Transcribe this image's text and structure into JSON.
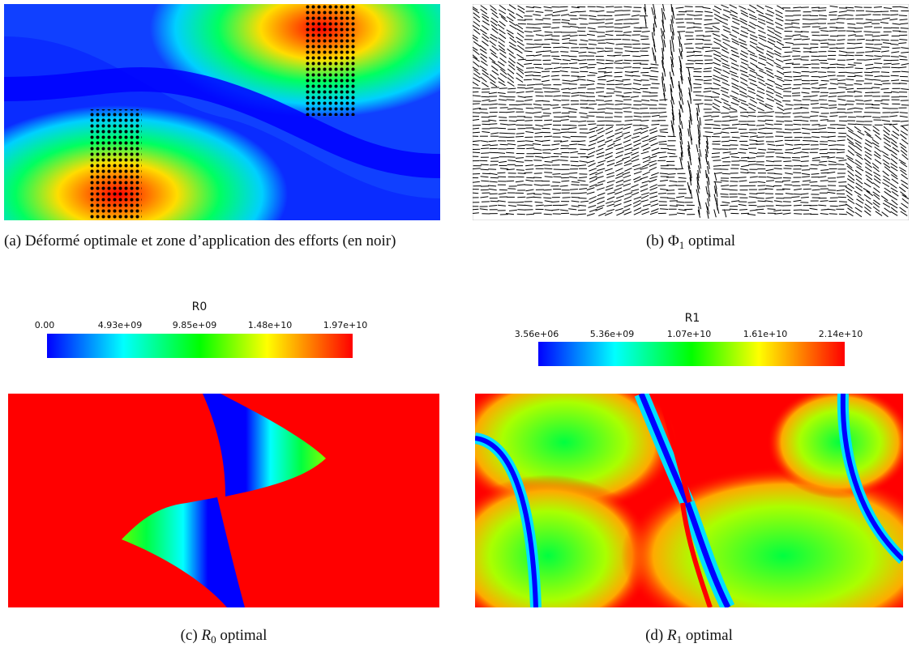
{
  "figure": {
    "panels": [
      {
        "id": "a",
        "caption_label": "(a)",
        "caption_text": "Déformé optimale et zone d’application des efforts (en noir)"
      },
      {
        "id": "b",
        "caption_label": "(b)",
        "caption_symbol": "Φ",
        "caption_sub": "1",
        "caption_rest": "optimal"
      },
      {
        "id": "c",
        "caption_label": "(c)",
        "caption_symbol": "R",
        "caption_sub": "0",
        "caption_rest": "optimal",
        "colorbar": {
          "title": "R0",
          "ticks": [
            "0.00",
            "4.93e+09",
            "9.85e+09",
            "1.48e+10",
            "1.97e+10"
          ]
        }
      },
      {
        "id": "d",
        "caption_label": "(d)",
        "caption_symbol": "R",
        "caption_sub": "1",
        "caption_rest": "optimal",
        "colorbar": {
          "title": "R1",
          "ticks": [
            "3.56e+06",
            "5.36e+09",
            "1.07e+10",
            "1.61e+10",
            "2.14e+10"
          ]
        }
      }
    ],
    "colormap": [
      "#0000ff",
      "#00ffff",
      "#00ff00",
      "#ffff00",
      "#ff8000",
      "#ff0000"
    ]
  }
}
